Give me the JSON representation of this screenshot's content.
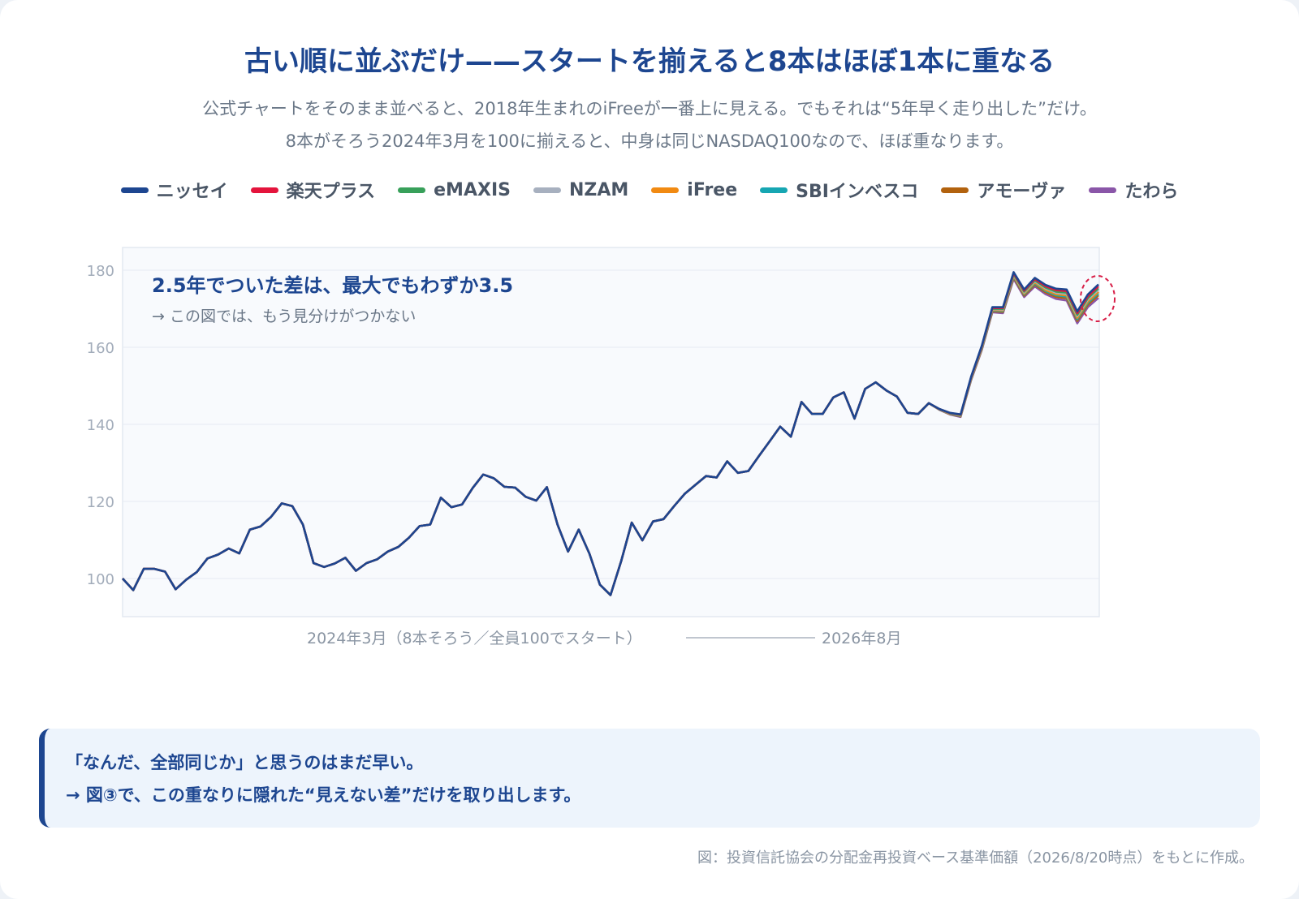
{
  "title": "古い順に並ぶだけ——スタートを揃えると8本はほぼ1本に重なる",
  "subtitle_lines": [
    "公式チャートをそのまま並べると、2018年生まれのiFreeが一番上に見える。でもそれは“5年早く走り出した”だけ。",
    "8本がそろう2024年3月を100に揃えると、中身は同じNASDAQ100なので、ほぼ重なります。"
  ],
  "colors": {
    "title": "#1d4690",
    "subtitle": "#6b7888",
    "grid": "#e6ebf2",
    "plot_bg": "#f8fafd",
    "highlight_ring": "#d81f48",
    "callout_bg": "#edf4fc",
    "callout_border": "#1d4690"
  },
  "chart_data": {
    "type": "line",
    "x_start_label": "2024年3月（8本そろう／全員100でスタート）",
    "x_end_label": "2026年8月",
    "y_ticks": [
      100,
      120,
      140,
      160,
      180
    ],
    "ylim": [
      90,
      186
    ],
    "grid": true,
    "legend_position": "top",
    "base_path": [
      100,
      97,
      102.5,
      102.5,
      101.8,
      97.2,
      99.7,
      101.7,
      105.2,
      106.2,
      107.8,
      106.5,
      112.7,
      113.5,
      116,
      119.5,
      118.8,
      114,
      104,
      103,
      103.9,
      105.4,
      102,
      104,
      105,
      107,
      108.2,
      110.6,
      113.6,
      114,
      121,
      118.5,
      119.2,
      123.5,
      127,
      126,
      123.8,
      123.6,
      121.2,
      120.2,
      123.7,
      114,
      107,
      112.7,
      106.5,
      98.4,
      95.7,
      104.5,
      114.5,
      109.9,
      114.8,
      115.4,
      118.8,
      122,
      124.3,
      126.6,
      126.2,
      130.4,
      127.4,
      127.9,
      131.8,
      135.6,
      139.4,
      136.8,
      145.8,
      142.7,
      142.7,
      147,
      148.3,
      141.5,
      149.2,
      150.9,
      148.8,
      147.2,
      143,
      142.7,
      145.5,
      144,
      143,
      142.6,
      152.4,
      160.4,
      170.4,
      170.4,
      179.5,
      175,
      178,
      176.2,
      175.2,
      175,
      169.3,
      173.7,
      176.3
    ],
    "divergence_start_index": 76,
    "series": [
      {
        "name": "ニッセイ",
        "color": "#1d4690",
        "end_offset": 0.0
      },
      {
        "name": "楽天プラス",
        "color": "#e4143c",
        "end_offset": -0.5
      },
      {
        "name": "eMAXIS",
        "color": "#38a05a",
        "end_offset": -1.0
      },
      {
        "name": "NZAM",
        "color": "#a7b0bf",
        "end_offset": -1.4
      },
      {
        "name": "iFree",
        "color": "#f18a12",
        "end_offset": -1.9
      },
      {
        "name": "SBIインベスコ",
        "color": "#16a6b2",
        "end_offset": -2.3
      },
      {
        "name": "アモーヴァ",
        "color": "#b2620e",
        "end_offset": -2.8
      },
      {
        "name": "たわら",
        "color": "#8a56a8",
        "end_offset": -3.5
      }
    ],
    "annotation": {
      "title": "2.5年でついた差は、最大でもわずか3.5",
      "note": "→ この図では、もう見分けがつかない"
    }
  },
  "callout": {
    "line1": "「なんだ、全部同じか」と思うのはまだ早い。",
    "line2": "→ 図③で、この重なりに隠れた“見えない差”だけを取り出します。"
  },
  "source": "図：投資信託協会の分配金再投資ベース基準価額（2026/8/20時点）をもとに作成。"
}
